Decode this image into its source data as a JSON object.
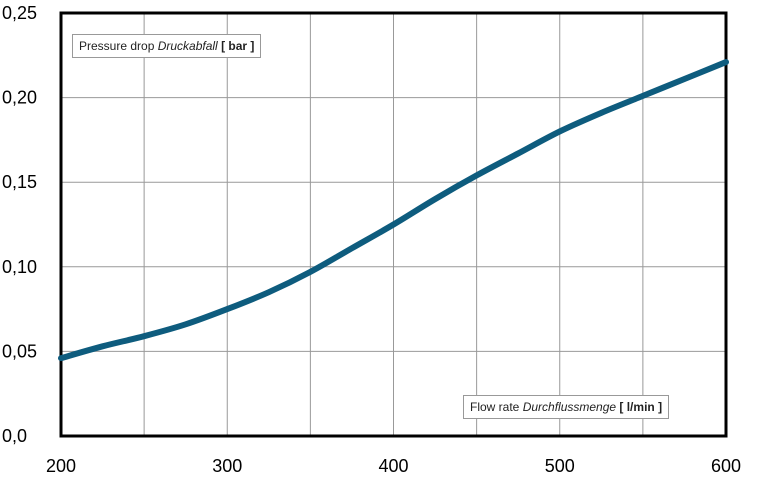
{
  "chart_data": {
    "type": "line",
    "xlim": [
      200,
      600
    ],
    "ylim": [
      0,
      0.25
    ],
    "x_ticks": [
      "200",
      "300",
      "400",
      "500",
      "600"
    ],
    "y_ticks": [
      "0,0",
      "0,05",
      "0,10",
      "0,15",
      "0,20",
      "0,25"
    ],
    "ylabel": {
      "prefix": "Pressure drop ",
      "italic": "Druckabfall",
      "unit": " [ bar ]"
    },
    "xlabel": {
      "prefix": "Flow rate ",
      "italic": "Durchflussmenge",
      "unit": " [ l/min ]"
    },
    "grid": true,
    "series": [
      {
        "x": [
          200,
          225,
          250,
          275,
          300,
          325,
          350,
          375,
          400,
          425,
          450,
          475,
          500,
          525,
          550,
          575,
          600
        ],
        "y": [
          0.046,
          0.053,
          0.059,
          0.066,
          0.075,
          0.085,
          0.097,
          0.111,
          0.125,
          0.14,
          0.154,
          0.167,
          0.18,
          0.191,
          0.201,
          0.211,
          0.221
        ],
        "color": "#0e5c7e"
      }
    ]
  }
}
